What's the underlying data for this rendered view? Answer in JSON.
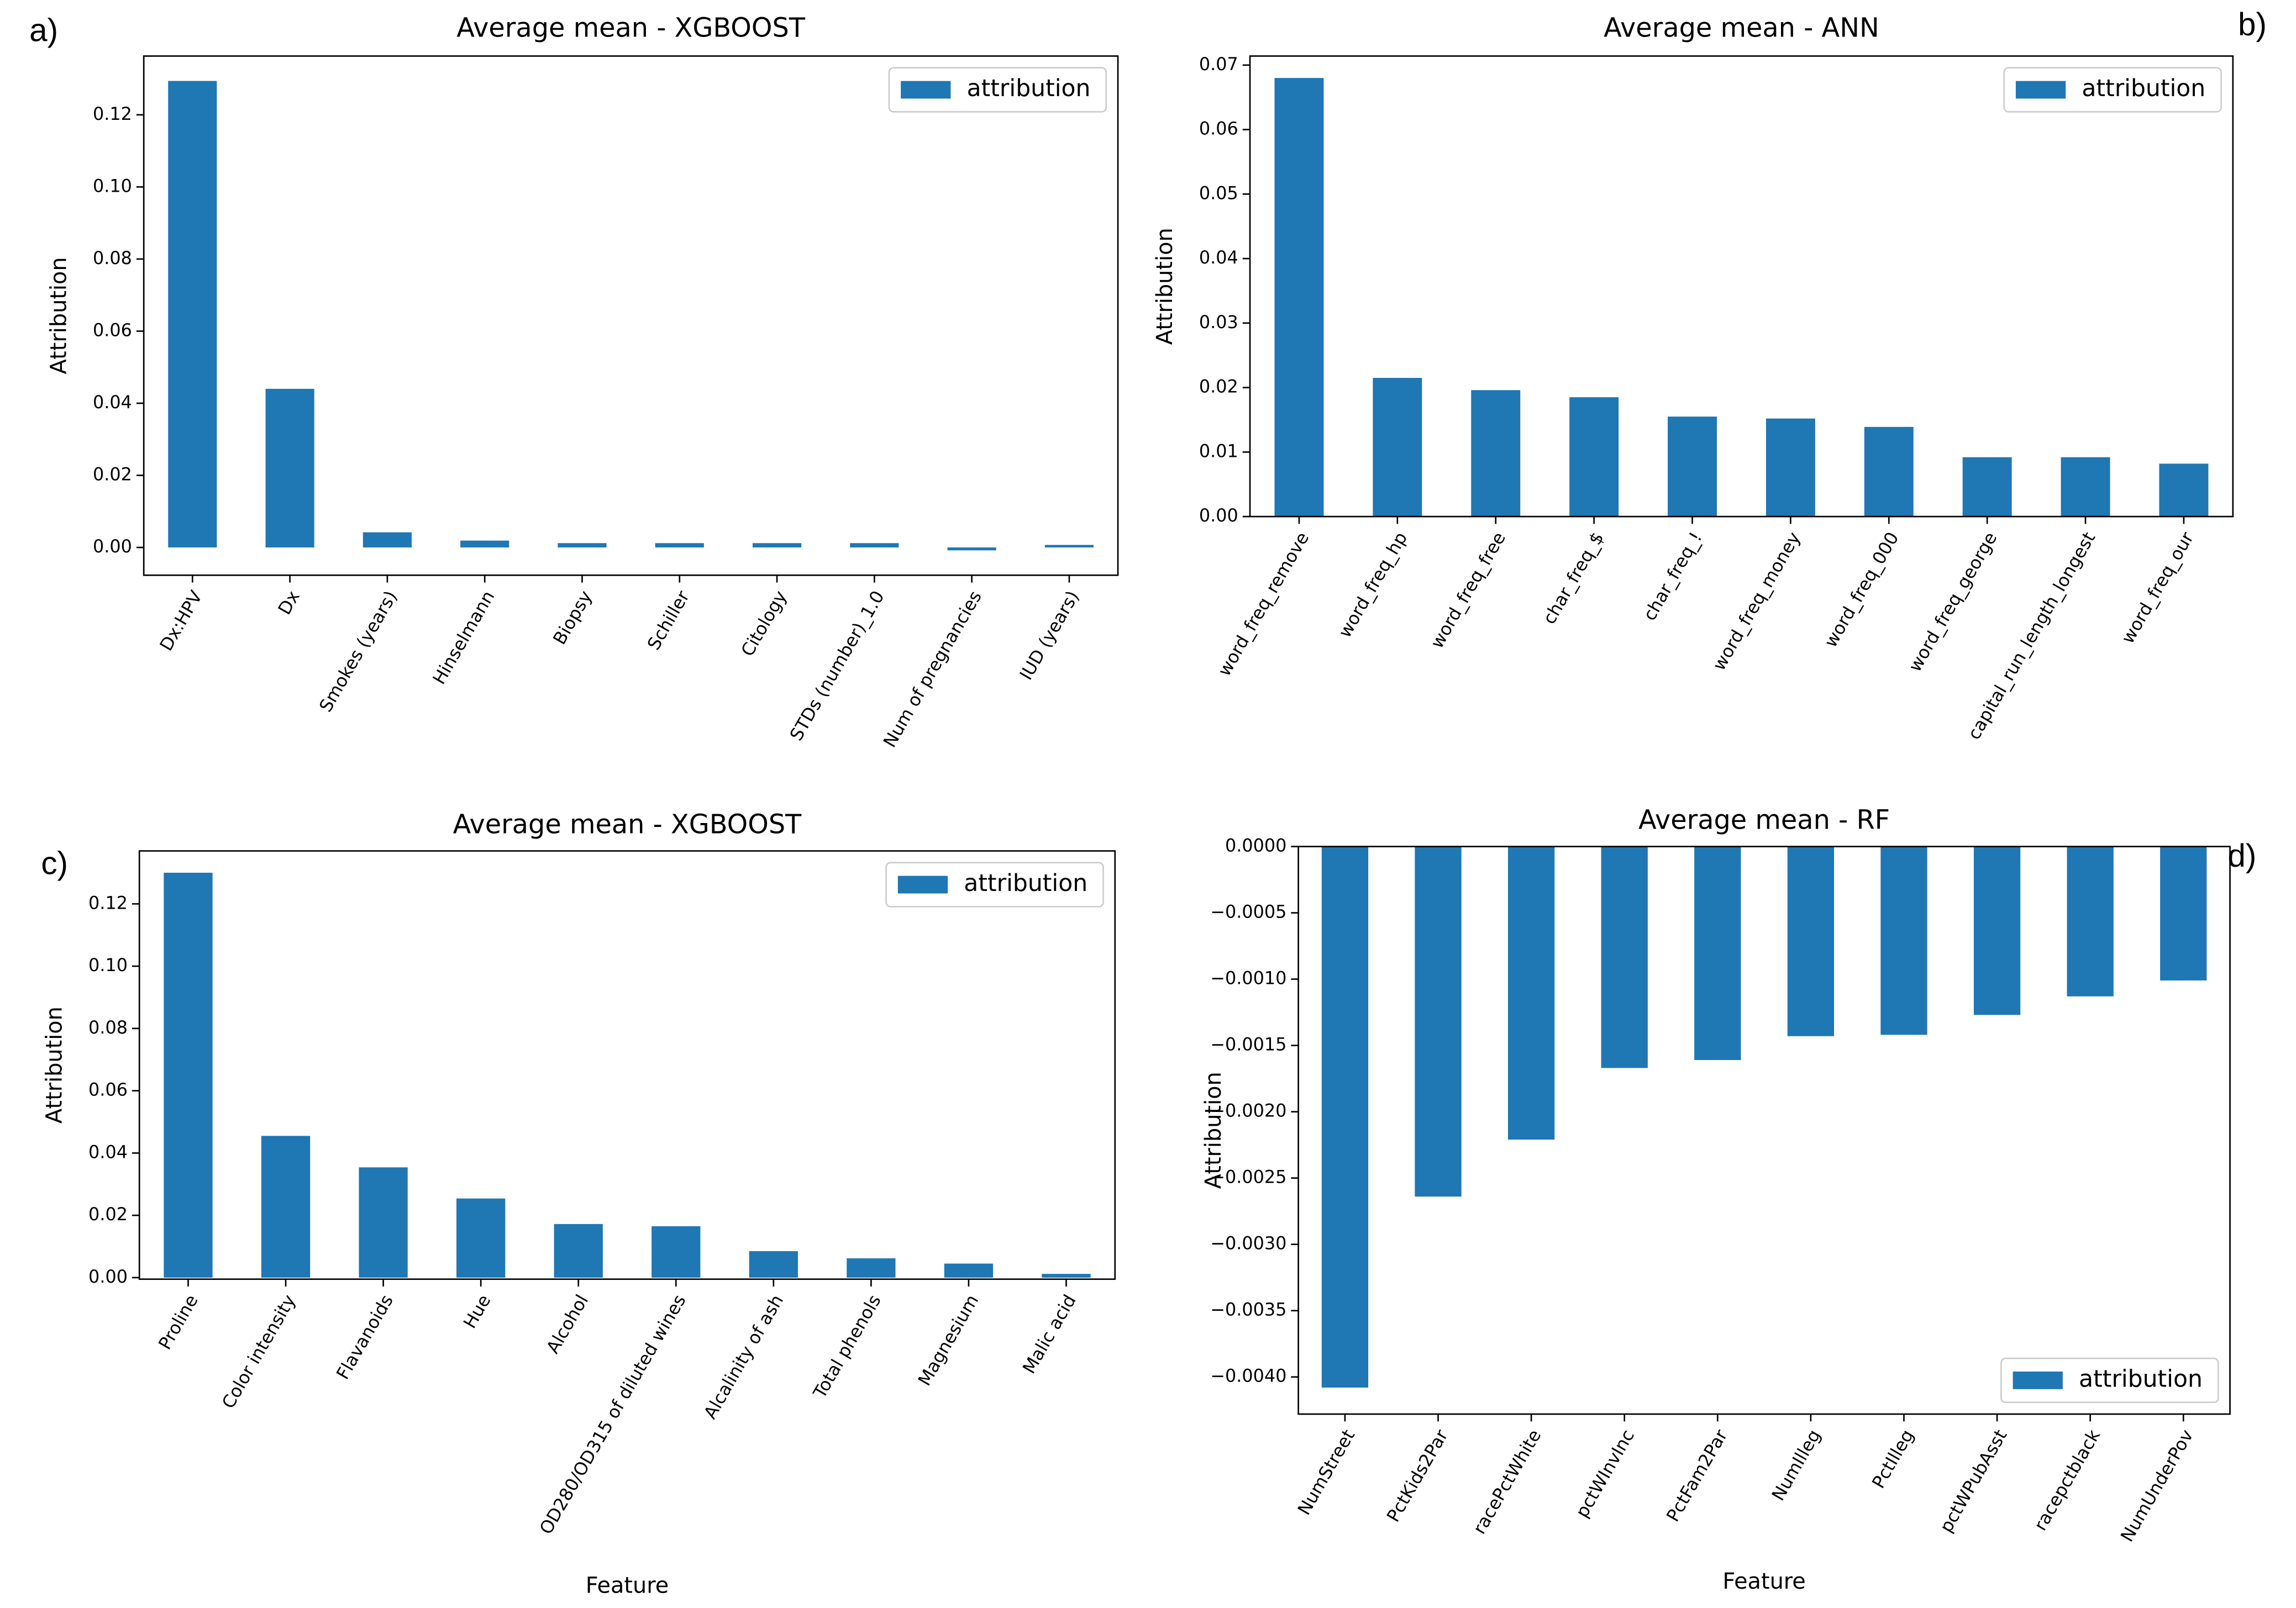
{
  "chart_data": [
    {
      "type": "bar",
      "panel_label": "a)",
      "title": "Average mean - XGBOOST",
      "ylabel": "Attribution",
      "categories": [
        "Dx:HPV",
        "Dx",
        "Smokes (years)",
        "Hinselmann",
        "Biopsy",
        "Schiller",
        "Citology",
        "STDs (number)_1.0",
        "Num of pregnancies",
        "IUD (years)"
      ],
      "series": [
        {
          "name": "attribution",
          "color": "#1f77b4",
          "values": [
            0.1294,
            0.044,
            0.0042,
            0.0019,
            0.0012,
            0.0012,
            0.0012,
            0.0012,
            -0.0008,
            0.0007
          ]
        }
      ],
      "ylim": [
        -0.0077,
        0.1363
      ],
      "yticks": [
        {
          "value": 0,
          "label": "0.00"
        },
        {
          "value": 0.02,
          "label": "0.02"
        },
        {
          "value": 0.04,
          "label": "0.04"
        },
        {
          "value": 0.06,
          "label": "0.06"
        },
        {
          "value": 0.08,
          "label": "0.08"
        },
        {
          "value": 0.1,
          "label": "0.10"
        },
        {
          "value": 0.12,
          "label": "0.12"
        }
      ],
      "legend": "upper right"
    },
    {
      "type": "bar",
      "panel_label": "b)",
      "title": "Average mean - ANN",
      "ylabel": "Attribution",
      "categories": [
        "word_freq_remove",
        "word_freq_hp",
        "word_freq_free",
        "char_freq_$",
        "char_freq_!",
        "word_freq_money",
        "word_freq_000",
        "word_freq_george",
        "capital_run_length_longest",
        "word_freq_our"
      ],
      "series": [
        {
          "name": "attribution",
          "color": "#1f77b4",
          "values": [
            0.068,
            0.0215,
            0.0196,
            0.0185,
            0.0155,
            0.0152,
            0.0139,
            0.0092,
            0.0092,
            0.0082
          ]
        }
      ],
      "ylim": [
        0,
        0.0714
      ],
      "yticks": [
        {
          "value": 0,
          "label": "0.00"
        },
        {
          "value": 0.01,
          "label": "0.01"
        },
        {
          "value": 0.02,
          "label": "0.02"
        },
        {
          "value": 0.03,
          "label": "0.03"
        },
        {
          "value": 0.04,
          "label": "0.04"
        },
        {
          "value": 0.05,
          "label": "0.05"
        },
        {
          "value": 0.06,
          "label": "0.06"
        },
        {
          "value": 0.07,
          "label": "0.07"
        }
      ],
      "legend": "upper right"
    },
    {
      "type": "bar",
      "panel_label": "c)",
      "title": "Average mean - XGBOOST",
      "ylabel": "Attribution",
      "xlabel": "Feature",
      "categories": [
        "Proline",
        "Color intensity",
        "Flavanoids",
        "Hue",
        "Alcohol",
        "OD280/OD315 of diluted wines",
        "Alcalinity of ash",
        "Total phenols",
        "Magnesium",
        "Malic acid"
      ],
      "series": [
        {
          "name": "attribution",
          "color": "#1f77b4",
          "values": [
            0.13,
            0.0455,
            0.0354,
            0.0254,
            0.0172,
            0.0165,
            0.0085,
            0.0062,
            0.0045,
            0.0012
          ]
        }
      ],
      "ylim": [
        -0.0005,
        0.137
      ],
      "yticks": [
        {
          "value": 0,
          "label": "0.00"
        },
        {
          "value": 0.02,
          "label": "0.02"
        },
        {
          "value": 0.04,
          "label": "0.04"
        },
        {
          "value": 0.06,
          "label": "0.06"
        },
        {
          "value": 0.08,
          "label": "0.08"
        },
        {
          "value": 0.1,
          "label": "0.10"
        },
        {
          "value": 0.12,
          "label": "0.12"
        }
      ],
      "legend": "upper right"
    },
    {
      "type": "bar",
      "panel_label": "d)",
      "title": "Average mean - RF",
      "ylabel": "Attribution",
      "xlabel": "Feature",
      "categories": [
        "NumStreet",
        "PctKids2Par",
        "racePctWhite",
        "pctWInvInc",
        "PctFam2Par",
        "NumIlleg",
        "PctIlleg",
        "pctWPubAsst",
        "racepctblack",
        "NumUnderPov"
      ],
      "series": [
        {
          "name": "attribution",
          "color": "#1f77b4",
          "values": [
            -0.00408,
            -0.00264,
            -0.00221,
            -0.00167,
            -0.00161,
            -0.00143,
            -0.00142,
            -0.00127,
            -0.00113,
            -0.00101
          ]
        }
      ],
      "ylim": [
        -0.00428,
        0
      ],
      "yticks": [
        {
          "value": -0.004,
          "label": "−0.0040"
        },
        {
          "value": -0.0035,
          "label": "−0.0035"
        },
        {
          "value": -0.003,
          "label": "−0.0030"
        },
        {
          "value": -0.0025,
          "label": "−0.0025"
        },
        {
          "value": -0.002,
          "label": "−0.0020"
        },
        {
          "value": -0.0015,
          "label": "−0.0015"
        },
        {
          "value": -0.001,
          "label": "−0.0010"
        },
        {
          "value": -0.0005,
          "label": "−0.0005"
        },
        {
          "value": 0,
          "label": "0.0000"
        }
      ],
      "legend": "lower right"
    }
  ]
}
